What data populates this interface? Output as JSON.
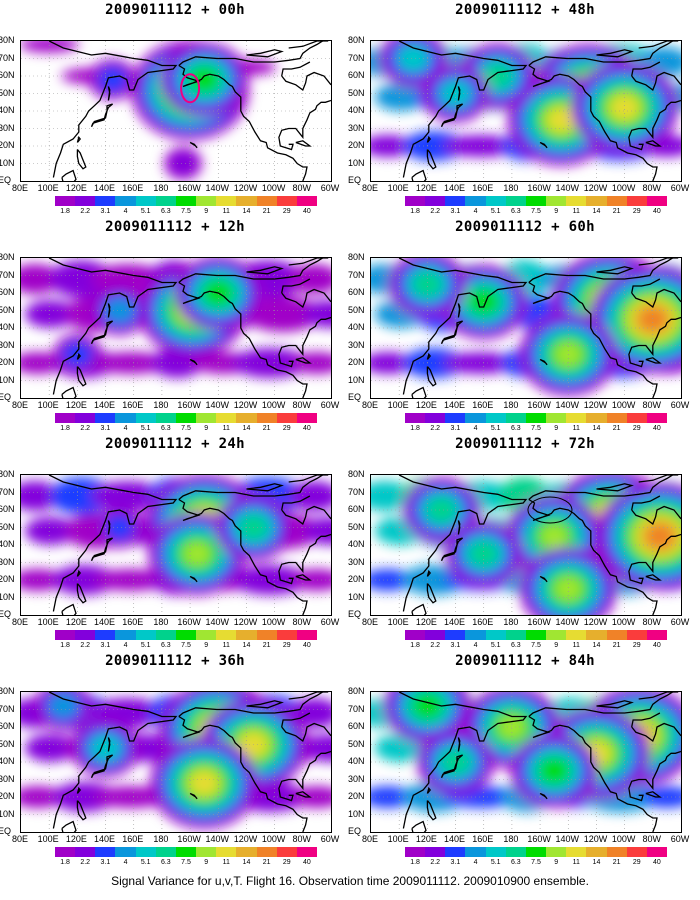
{
  "caption": "Signal Variance for u,v,T. Flight 16. Observation time 2009011112. 2009010900 ensemble.",
  "colorbar": {
    "levels": [
      "1.8",
      "2.2",
      "3.1",
      "4",
      "5.1",
      "6.3",
      "7.5",
      "9",
      "11",
      "14",
      "21",
      "29",
      "40"
    ],
    "colors": [
      "#a000c8",
      "#8200dc",
      "#1e3cff",
      "#0a96dc",
      "#00c8c8",
      "#00d28c",
      "#00dc00",
      "#a0e632",
      "#e6dc32",
      "#e6af2d",
      "#f08228",
      "#fa3c3c",
      "#f00082"
    ]
  },
  "axes": {
    "x_ticks": [
      "80E",
      "100E",
      "120E",
      "140E",
      "160E",
      "180",
      "160W",
      "140W",
      "120W",
      "100W",
      "80W",
      "60W"
    ],
    "y_ticks": [
      "80N",
      "70N",
      "60N",
      "50N",
      "40N",
      "30N",
      "20N",
      "10N",
      "EQ"
    ]
  },
  "chart_data": [
    {
      "type": "heatmap",
      "title": "2009011112 + 00h",
      "lead_hours": 0,
      "blobs": [
        {
          "lon": -160,
          "lat": 52,
          "level": 9
        },
        {
          "lon": -150,
          "lat": 58,
          "level": 6
        },
        {
          "lon": 145,
          "lat": 58,
          "level": 2
        },
        {
          "lon": -165,
          "lat": 10,
          "level": 1
        }
      ]
    },
    {
      "type": "heatmap",
      "title": "2009011112 + 12h",
      "lead_hours": 12,
      "blobs": [
        {
          "lon": -158,
          "lat": 50,
          "level": 8
        },
        {
          "lon": -140,
          "lat": 60,
          "level": 6
        },
        {
          "lon": 150,
          "lat": 50,
          "level": 3
        },
        {
          "lon": 120,
          "lat": 25,
          "level": 2
        }
      ]
    },
    {
      "type": "heatmap",
      "title": "2009011112 + 24h",
      "lead_hours": 24,
      "blobs": [
        {
          "lon": -150,
          "lat": 52,
          "level": 9
        },
        {
          "lon": -155,
          "lat": 35,
          "level": 7
        },
        {
          "lon": -115,
          "lat": 50,
          "level": 5
        },
        {
          "lon": 150,
          "lat": 50,
          "level": 2
        }
      ]
    },
    {
      "type": "heatmap",
      "title": "2009011112 + 36h",
      "lead_hours": 36,
      "blobs": [
        {
          "lon": -140,
          "lat": 58,
          "level": 9
        },
        {
          "lon": -115,
          "lat": 50,
          "level": 8
        },
        {
          "lon": -150,
          "lat": 28,
          "level": 8
        },
        {
          "lon": 140,
          "lat": 48,
          "level": 4
        },
        {
          "lon": 110,
          "lat": 72,
          "level": 3
        }
      ]
    },
    {
      "type": "heatmap",
      "title": "2009011112 + 48h",
      "lead_hours": 48,
      "blobs": [
        {
          "lon": -125,
          "lat": 50,
          "level": 9
        },
        {
          "lon": -145,
          "lat": 35,
          "level": 8
        },
        {
          "lon": -100,
          "lat": 42,
          "level": 8
        },
        {
          "lon": 170,
          "lat": 60,
          "level": 5
        },
        {
          "lon": 140,
          "lat": 50,
          "level": 4
        },
        {
          "lon": 110,
          "lat": 70,
          "level": 4
        }
      ]
    },
    {
      "type": "heatmap",
      "title": "2009011112 + 60h",
      "lead_hours": 60,
      "blobs": [
        {
          "lon": -110,
          "lat": 55,
          "level": 9
        },
        {
          "lon": -80,
          "lat": 45,
          "level": 10
        },
        {
          "lon": -140,
          "lat": 25,
          "level": 7
        },
        {
          "lon": 160,
          "lat": 55,
          "level": 6
        },
        {
          "lon": 120,
          "lat": 65,
          "level": 5
        }
      ]
    },
    {
      "type": "heatmap",
      "title": "2009011112 + 72h",
      "lead_hours": 72,
      "blobs": [
        {
          "lon": -110,
          "lat": 55,
          "level": 9
        },
        {
          "lon": -75,
          "lat": 45,
          "level": 10
        },
        {
          "lon": -150,
          "lat": 45,
          "level": 7
        },
        {
          "lon": -140,
          "lat": 15,
          "level": 7
        },
        {
          "lon": 130,
          "lat": 60,
          "level": 5
        },
        {
          "lon": 160,
          "lat": 35,
          "level": 5
        }
      ]
    },
    {
      "type": "heatmap",
      "title": "2009011112 + 84h",
      "lead_hours": 84,
      "blobs": [
        {
          "lon": -90,
          "lat": 55,
          "level": 9
        },
        {
          "lon": -120,
          "lat": 45,
          "level": 8
        },
        {
          "lon": 180,
          "lat": 60,
          "level": 7
        },
        {
          "lon": 120,
          "lat": 72,
          "level": 6
        },
        {
          "lon": 140,
          "lat": 40,
          "level": 5
        },
        {
          "lon": -150,
          "lat": 35,
          "level": 6
        }
      ]
    }
  ]
}
